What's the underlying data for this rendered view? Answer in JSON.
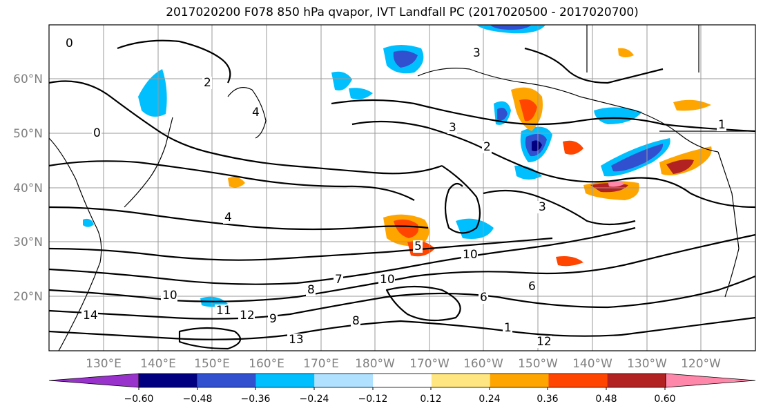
{
  "title": "2017020200 F078 850 hPa qvapor, IVT Landfall PC (2017020500 - 2017020700)",
  "lat_labels": [
    "60°N",
    "50°N",
    "40°N",
    "30°N",
    "20°N"
  ],
  "lon_labels": [
    "130°E",
    "140°E",
    "150°E",
    "160°E",
    "170°E",
    "180°W",
    "170°W",
    "160°W",
    "150°W",
    "140°W",
    "130°W",
    "120°W"
  ],
  "colorbar": {
    "ticks": [
      "−0.60",
      "−0.48",
      "−0.36",
      "−0.24",
      "−0.12",
      "0.12",
      "0.24",
      "0.36",
      "0.48",
      "0.60"
    ],
    "colors": [
      "#9932cc",
      "#000080",
      "#3050d0",
      "#00bfff",
      "#b0e2ff",
      "#ffffff",
      "#ffe680",
      "#ffa500",
      "#ff4500",
      "#b22222",
      "#ff88aa"
    ]
  },
  "contour_labels": [
    "0",
    "0",
    "1",
    "1",
    "2",
    "2",
    "3",
    "3",
    "3",
    "4",
    "4",
    "5",
    "6",
    "6",
    "7",
    "8",
    "8",
    "9",
    "10",
    "10",
    "10",
    "11",
    "12",
    "12",
    "13",
    "14"
  ]
}
